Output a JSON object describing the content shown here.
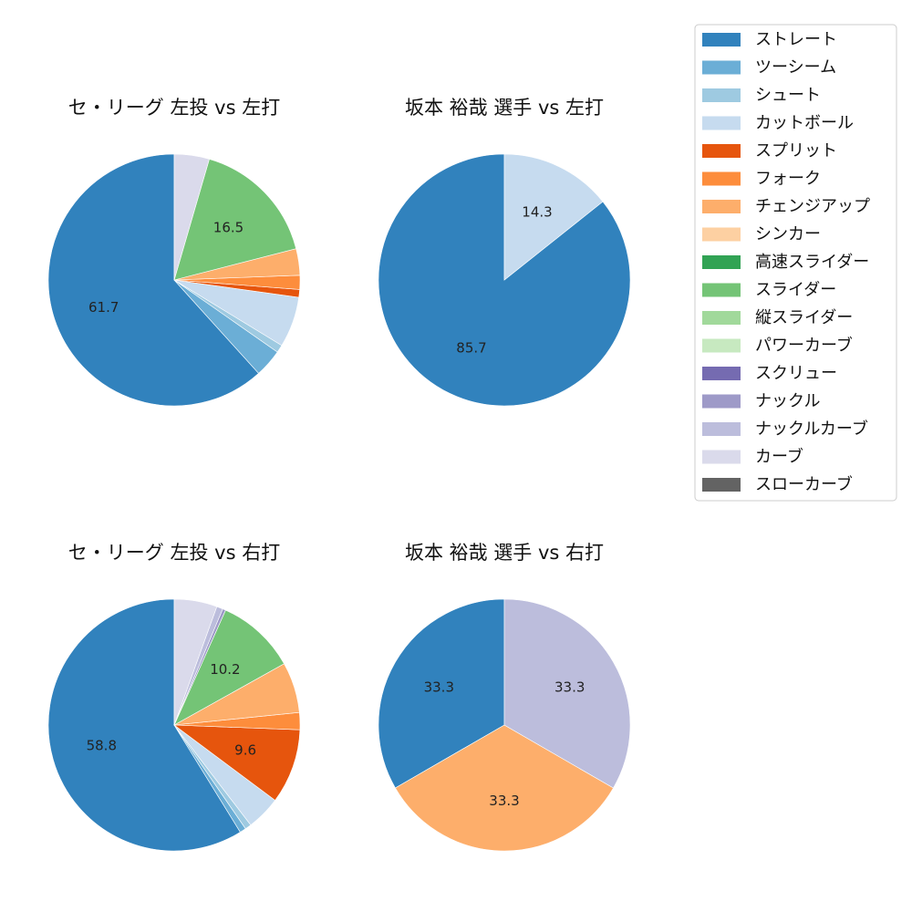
{
  "colors": {
    "ストレート": "#3182bd",
    "ツーシーム": "#6baed6",
    "シュート": "#9ecae1",
    "カットボール": "#c6dbef",
    "スプリット": "#e6550d",
    "フォーク": "#fd8d3c",
    "チェンジアップ": "#fdae6b",
    "シンカー": "#fdd0a2",
    "高速スライダー": "#31a354",
    "スライダー": "#74c476",
    "縦スライダー": "#a1d99b",
    "パワーカーブ": "#c7e9c0",
    "スクリュー": "#756bb1",
    "ナックル": "#9e9ac8",
    "ナックルカーブ": "#bcbddc",
    "カーブ": "#dadaeb",
    "スローカーブ": "#636363"
  },
  "chart_data": [
    {
      "type": "pie",
      "title": "セ・リーグ 左投 vs 左打",
      "slices": [
        {
          "name": "ストレート",
          "value": 61.7,
          "label": "61.7"
        },
        {
          "name": "ツーシーム",
          "value": 3.6,
          "label": ""
        },
        {
          "name": "シュート",
          "value": 1.0,
          "label": ""
        },
        {
          "name": "カットボール",
          "value": 6.5,
          "label": ""
        },
        {
          "name": "スプリット",
          "value": 1.0,
          "label": ""
        },
        {
          "name": "フォーク",
          "value": 1.8,
          "label": ""
        },
        {
          "name": "チェンジアップ",
          "value": 3.4,
          "label": ""
        },
        {
          "name": "スライダー",
          "value": 16.5,
          "label": "16.5"
        },
        {
          "name": "カーブ",
          "value": 4.5,
          "label": ""
        }
      ]
    },
    {
      "type": "pie",
      "title": "坂本 裕哉 選手 vs 左打",
      "slices": [
        {
          "name": "ストレート",
          "value": 85.7,
          "label": "85.7"
        },
        {
          "name": "カットボール",
          "value": 14.3,
          "label": "14.3"
        }
      ]
    },
    {
      "type": "pie",
      "title": "セ・リーグ 左投 vs 右打",
      "slices": [
        {
          "name": "ストレート",
          "value": 58.8,
          "label": "58.8"
        },
        {
          "name": "ツーシーム",
          "value": 0.8,
          "label": ""
        },
        {
          "name": "シュート",
          "value": 0.8,
          "label": ""
        },
        {
          "name": "カットボール",
          "value": 4.4,
          "label": ""
        },
        {
          "name": "スプリット",
          "value": 9.6,
          "label": "9.6"
        },
        {
          "name": "フォーク",
          "value": 2.2,
          "label": ""
        },
        {
          "name": "チェンジアップ",
          "value": 6.5,
          "label": ""
        },
        {
          "name": "スライダー",
          "value": 10.2,
          "label": "10.2"
        },
        {
          "name": "ナックル",
          "value": 0.4,
          "label": ""
        },
        {
          "name": "ナックルカーブ",
          "value": 0.8,
          "label": ""
        },
        {
          "name": "カーブ",
          "value": 5.5,
          "label": ""
        }
      ]
    },
    {
      "type": "pie",
      "title": "坂本 裕哉 選手 vs 右打",
      "slices": [
        {
          "name": "ストレート",
          "value": 33.3,
          "label": "33.3"
        },
        {
          "name": "チェンジアップ",
          "value": 33.3,
          "label": "33.3"
        },
        {
          "name": "ナックルカーブ",
          "value": 33.3,
          "label": "33.3"
        }
      ]
    }
  ],
  "legend": {
    "placement": "top-right",
    "entries": [
      "ストレート",
      "ツーシーム",
      "シュート",
      "カットボール",
      "スプリット",
      "フォーク",
      "チェンジアップ",
      "シンカー",
      "高速スライダー",
      "スライダー",
      "縦スライダー",
      "パワーカーブ",
      "スクリュー",
      "ナックル",
      "ナックルカーブ",
      "カーブ",
      "スローカーブ"
    ]
  }
}
